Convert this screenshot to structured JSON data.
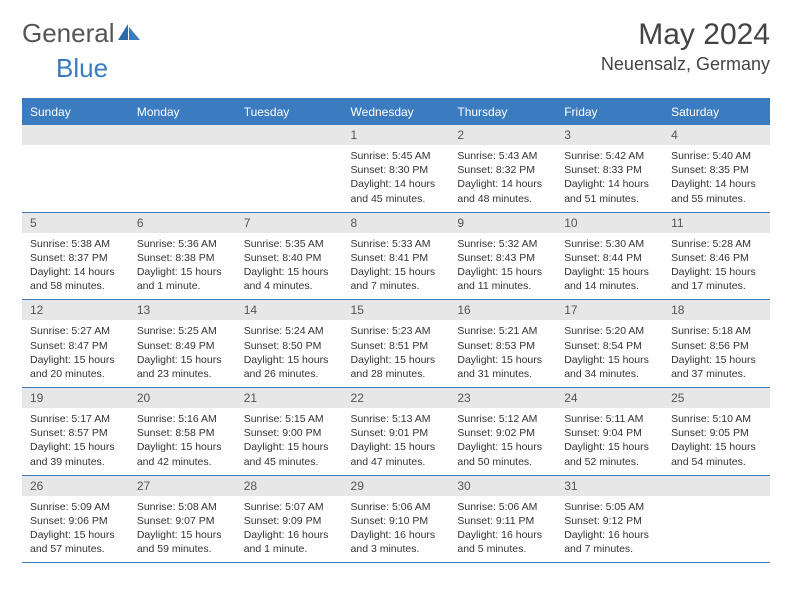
{
  "brand": {
    "name_gray": "General",
    "name_blue": "Blue"
  },
  "title": "May 2024",
  "location": "Neuensalz, Germany",
  "colors": {
    "accent": "#3b7bbf",
    "header_text": "#ffffff",
    "daynum_bg": "#e7e7e7",
    "text": "#333333"
  },
  "day_headers": [
    "Sunday",
    "Monday",
    "Tuesday",
    "Wednesday",
    "Thursday",
    "Friday",
    "Saturday"
  ],
  "weeks": [
    [
      null,
      null,
      null,
      {
        "n": "1",
        "sr": "5:45 AM",
        "ss": "8:30 PM",
        "dl": "14 hours and 45 minutes."
      },
      {
        "n": "2",
        "sr": "5:43 AM",
        "ss": "8:32 PM",
        "dl": "14 hours and 48 minutes."
      },
      {
        "n": "3",
        "sr": "5:42 AM",
        "ss": "8:33 PM",
        "dl": "14 hours and 51 minutes."
      },
      {
        "n": "4",
        "sr": "5:40 AM",
        "ss": "8:35 PM",
        "dl": "14 hours and 55 minutes."
      }
    ],
    [
      {
        "n": "5",
        "sr": "5:38 AM",
        "ss": "8:37 PM",
        "dl": "14 hours and 58 minutes."
      },
      {
        "n": "6",
        "sr": "5:36 AM",
        "ss": "8:38 PM",
        "dl": "15 hours and 1 minute."
      },
      {
        "n": "7",
        "sr": "5:35 AM",
        "ss": "8:40 PM",
        "dl": "15 hours and 4 minutes."
      },
      {
        "n": "8",
        "sr": "5:33 AM",
        "ss": "8:41 PM",
        "dl": "15 hours and 7 minutes."
      },
      {
        "n": "9",
        "sr": "5:32 AM",
        "ss": "8:43 PM",
        "dl": "15 hours and 11 minutes."
      },
      {
        "n": "10",
        "sr": "5:30 AM",
        "ss": "8:44 PM",
        "dl": "15 hours and 14 minutes."
      },
      {
        "n": "11",
        "sr": "5:28 AM",
        "ss": "8:46 PM",
        "dl": "15 hours and 17 minutes."
      }
    ],
    [
      {
        "n": "12",
        "sr": "5:27 AM",
        "ss": "8:47 PM",
        "dl": "15 hours and 20 minutes."
      },
      {
        "n": "13",
        "sr": "5:25 AM",
        "ss": "8:49 PM",
        "dl": "15 hours and 23 minutes."
      },
      {
        "n": "14",
        "sr": "5:24 AM",
        "ss": "8:50 PM",
        "dl": "15 hours and 26 minutes."
      },
      {
        "n": "15",
        "sr": "5:23 AM",
        "ss": "8:51 PM",
        "dl": "15 hours and 28 minutes."
      },
      {
        "n": "16",
        "sr": "5:21 AM",
        "ss": "8:53 PM",
        "dl": "15 hours and 31 minutes."
      },
      {
        "n": "17",
        "sr": "5:20 AM",
        "ss": "8:54 PM",
        "dl": "15 hours and 34 minutes."
      },
      {
        "n": "18",
        "sr": "5:18 AM",
        "ss": "8:56 PM",
        "dl": "15 hours and 37 minutes."
      }
    ],
    [
      {
        "n": "19",
        "sr": "5:17 AM",
        "ss": "8:57 PM",
        "dl": "15 hours and 39 minutes."
      },
      {
        "n": "20",
        "sr": "5:16 AM",
        "ss": "8:58 PM",
        "dl": "15 hours and 42 minutes."
      },
      {
        "n": "21",
        "sr": "5:15 AM",
        "ss": "9:00 PM",
        "dl": "15 hours and 45 minutes."
      },
      {
        "n": "22",
        "sr": "5:13 AM",
        "ss": "9:01 PM",
        "dl": "15 hours and 47 minutes."
      },
      {
        "n": "23",
        "sr": "5:12 AM",
        "ss": "9:02 PM",
        "dl": "15 hours and 50 minutes."
      },
      {
        "n": "24",
        "sr": "5:11 AM",
        "ss": "9:04 PM",
        "dl": "15 hours and 52 minutes."
      },
      {
        "n": "25",
        "sr": "5:10 AM",
        "ss": "9:05 PM",
        "dl": "15 hours and 54 minutes."
      }
    ],
    [
      {
        "n": "26",
        "sr": "5:09 AM",
        "ss": "9:06 PM",
        "dl": "15 hours and 57 minutes."
      },
      {
        "n": "27",
        "sr": "5:08 AM",
        "ss": "9:07 PM",
        "dl": "15 hours and 59 minutes."
      },
      {
        "n": "28",
        "sr": "5:07 AM",
        "ss": "9:09 PM",
        "dl": "16 hours and 1 minute."
      },
      {
        "n": "29",
        "sr": "5:06 AM",
        "ss": "9:10 PM",
        "dl": "16 hours and 3 minutes."
      },
      {
        "n": "30",
        "sr": "5:06 AM",
        "ss": "9:11 PM",
        "dl": "16 hours and 5 minutes."
      },
      {
        "n": "31",
        "sr": "5:05 AM",
        "ss": "9:12 PM",
        "dl": "16 hours and 7 minutes."
      },
      null
    ]
  ],
  "labels": {
    "sunrise": "Sunrise:",
    "sunset": "Sunset:",
    "daylight": "Daylight:"
  }
}
